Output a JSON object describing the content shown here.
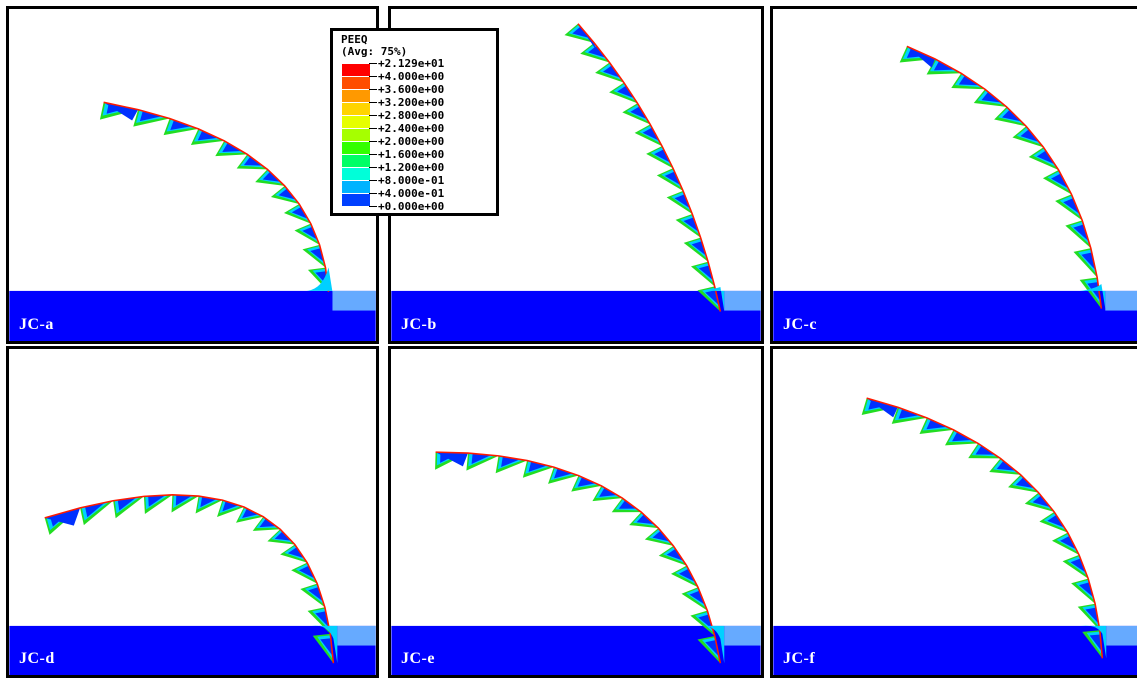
{
  "panels": [
    {
      "label": "JC-a"
    },
    {
      "label": "JC-b"
    },
    {
      "label": "JC-c"
    },
    {
      "label": "JC-d"
    },
    {
      "label": "JC-e"
    },
    {
      "label": "JC-f"
    }
  ],
  "legend": {
    "title": "PEEQ",
    "subtitle": "(Avg: 75%)",
    "values": [
      "+2.129e+01",
      "+4.000e+00",
      "+3.600e+00",
      "+3.200e+00",
      "+2.800e+00",
      "+2.400e+00",
      "+2.000e+00",
      "+1.600e+00",
      "+1.200e+00",
      "+8.000e-01",
      "+4.000e-01",
      "+0.000e+00"
    ],
    "colors": [
      "#ff0000",
      "#ff4d00",
      "#ff9900",
      "#ffd400",
      "#e6ff00",
      "#a6ff00",
      "#33ff00",
      "#00ff66",
      "#00ffd9",
      "#00b3ff",
      "#0040ff"
    ]
  },
  "colors": {
    "base": "#0000ff",
    "chip_low": "#0030ff",
    "chip_mid": "#00d0ff",
    "chip_hi": "#22dd22",
    "chip_edge": "#ff1a00"
  }
}
